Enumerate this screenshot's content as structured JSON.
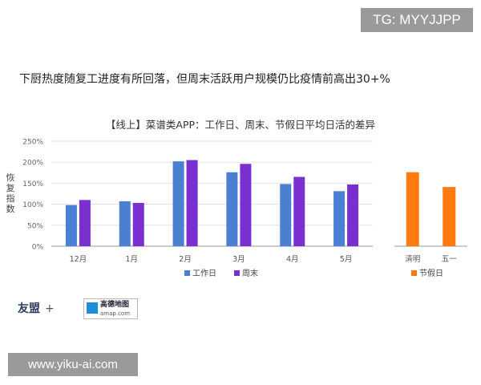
{
  "watermark_top": "TG: MYYJJPP",
  "watermark_bottom": "www.yiku-ai.com",
  "headline": "下厨热度随复工进度有所回落，但周末活跃用户规模仍比疫情前高出30+%",
  "logos": {
    "youmeng": "友盟",
    "plus": "+",
    "amap_cn": "高德地图",
    "amap_en": "amap.com"
  },
  "chart_data": [
    {
      "type": "bar",
      "title": "【线上】菜谱类APP：工作日、周末、节假日平均日活的差异",
      "ylabel": "恢复指数",
      "ylim": [
        0,
        250
      ],
      "yticks": [
        "0%",
        "50%",
        "100%",
        "150%",
        "200%",
        "250%"
      ],
      "categories": [
        "12月",
        "1月",
        "2月",
        "3月",
        "4月",
        "5月"
      ],
      "series": [
        {
          "name": "工作日",
          "values": [
            98,
            107,
            202,
            176,
            148,
            131
          ],
          "color": "#4a7fd1"
        },
        {
          "name": "周末",
          "values": [
            110,
            103,
            205,
            196,
            165,
            147
          ],
          "color": "#7a2fd0"
        }
      ],
      "legend_position": "bottom"
    },
    {
      "type": "bar",
      "categories": [
        "清明",
        "五一"
      ],
      "series": [
        {
          "name": "节假日",
          "values": [
            176,
            141
          ],
          "color": "#ff7a10"
        }
      ],
      "ylim": [
        0,
        250
      ],
      "legend_position": "bottom"
    }
  ]
}
